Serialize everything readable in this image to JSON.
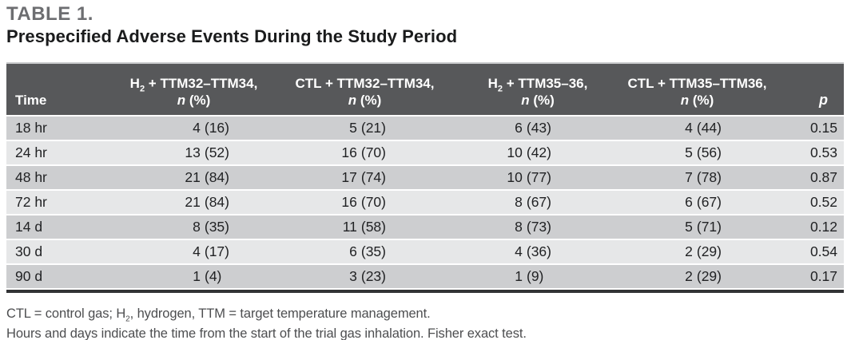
{
  "title": "TABLE 1.",
  "subtitle": "Prespecified Adverse Events During the Study Period",
  "table": {
    "headers": {
      "time": "Time",
      "c1": {
        "pre": "H",
        "sub": "2",
        "post": " + TTM32–TTM34,"
      },
      "c2": {
        "pre": "CTL + TTM32–TTM34,",
        "sub": "",
        "post": ""
      },
      "c3": {
        "pre": "H",
        "sub": "2",
        "post": " + TTM35–36,"
      },
      "c4": {
        "pre": "CTL + TTM35–TTM36,",
        "sub": "",
        "post": ""
      },
      "n_italic": "n",
      "n_rest": " (%)",
      "p": "p"
    },
    "rows": [
      {
        "time": "18 hr",
        "c1": {
          "n": "4",
          "pct": "(16)"
        },
        "c2": {
          "n": "5",
          "pct": "(21)"
        },
        "c3": {
          "n": "6",
          "pct": "(43)"
        },
        "c4": {
          "n": "4",
          "pct": "(44)"
        },
        "p": "0.15"
      },
      {
        "time": "24 hr",
        "c1": {
          "n": "13",
          "pct": "(52)"
        },
        "c2": {
          "n": "16",
          "pct": "(70)"
        },
        "c3": {
          "n": "10",
          "pct": "(42)"
        },
        "c4": {
          "n": "5",
          "pct": "(56)"
        },
        "p": "0.53"
      },
      {
        "time": "48 hr",
        "c1": {
          "n": "21",
          "pct": "(84)"
        },
        "c2": {
          "n": "17",
          "pct": "(74)"
        },
        "c3": {
          "n": "10",
          "pct": "(77)"
        },
        "c4": {
          "n": "7",
          "pct": "(78)"
        },
        "p": "0.87"
      },
      {
        "time": "72 hr",
        "c1": {
          "n": "21",
          "pct": "(84)"
        },
        "c2": {
          "n": "16",
          "pct": "(70)"
        },
        "c3": {
          "n": "8",
          "pct": "(67)"
        },
        "c4": {
          "n": "6",
          "pct": "(67)"
        },
        "p": "0.52"
      },
      {
        "time": "14 d",
        "c1": {
          "n": "8",
          "pct": "(35)"
        },
        "c2": {
          "n": "11",
          "pct": "(58)"
        },
        "c3": {
          "n": "8",
          "pct": "(73)"
        },
        "c4": {
          "n": "5",
          "pct": "(71)"
        },
        "p": "0.12"
      },
      {
        "time": "30 d",
        "c1": {
          "n": "4",
          "pct": "(17)"
        },
        "c2": {
          "n": "6",
          "pct": "(35)"
        },
        "c3": {
          "n": "4",
          "pct": "(36)"
        },
        "c4": {
          "n": "2",
          "pct": "(29)"
        },
        "p": "0.54"
      },
      {
        "time": "90 d",
        "c1": {
          "n": "1",
          "pct": "(4)"
        },
        "c2": {
          "n": "3",
          "pct": "(23)"
        },
        "c3": {
          "n": "1",
          "pct": "(9)"
        },
        "c4": {
          "n": "2",
          "pct": "(29)"
        },
        "p": "0.17"
      }
    ]
  },
  "footnotes": {
    "line1_pre": "CTL = control gas; H",
    "line1_sub": "2",
    "line1_post": ", hydrogen, TTM = target temperature management.",
    "line2": "Hours and days indicate the time from the start of the trial gas inhalation. Fisher exact test."
  },
  "colors": {
    "header_bg": "#57585a",
    "row_dark": "#cdced0",
    "row_light": "#e6e7e8",
    "title_gray": "#6d6e71",
    "bottom_rule": "#323335"
  }
}
